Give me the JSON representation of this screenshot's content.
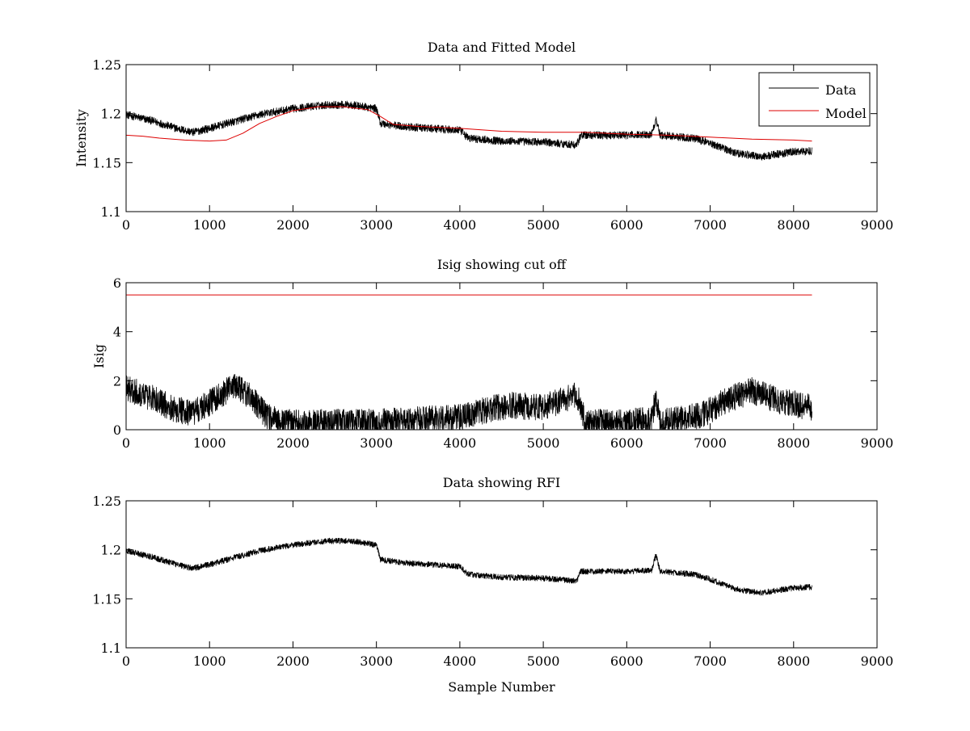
{
  "chart_data": [
    {
      "type": "line",
      "title": "Data and Fitted Model",
      "xlabel": "",
      "ylabel": "Intensity",
      "xlim": [
        0,
        9000
      ],
      "ylim": [
        1.1,
        1.25
      ],
      "xticks": [
        "0",
        "1000",
        "2000",
        "3000",
        "4000",
        "5000",
        "6000",
        "7000",
        "8000",
        "9000"
      ],
      "yticks": [
        "1.1",
        "1.15",
        "1.2",
        "1.25"
      ],
      "grid": false,
      "legend": "top-right",
      "series": [
        {
          "name": "Data",
          "color": "#000000",
          "noise": 0.004,
          "x": [
            0,
            300,
            600,
            800,
            1000,
            1300,
            1600,
            2000,
            2400,
            2700,
            3000,
            3050,
            3300,
            3600,
            4000,
            4100,
            4500,
            5000,
            5400,
            5450,
            6000,
            6300,
            6350,
            6400,
            6800,
            7000,
            7300,
            7600,
            8000,
            8220
          ],
          "values": [
            1.199,
            1.193,
            1.185,
            1.181,
            1.185,
            1.192,
            1.199,
            1.205,
            1.209,
            1.209,
            1.205,
            1.19,
            1.187,
            1.185,
            1.183,
            1.175,
            1.172,
            1.171,
            1.168,
            1.178,
            1.178,
            1.179,
            1.195,
            1.178,
            1.175,
            1.17,
            1.16,
            1.156,
            1.161,
            1.162
          ]
        },
        {
          "name": "Model",
          "color": "#dd0000",
          "noise": 0,
          "x": [
            0,
            200,
            400,
            700,
            1000,
            1200,
            1400,
            1600,
            1800,
            2000,
            2300,
            2600,
            2900,
            3050,
            3200,
            3500,
            4000,
            4500,
            5000,
            5500,
            6000,
            6500,
            7000,
            7500,
            8000,
            8220
          ],
          "values": [
            1.178,
            1.177,
            1.175,
            1.173,
            1.172,
            1.173,
            1.18,
            1.19,
            1.197,
            1.203,
            1.207,
            1.207,
            1.204,
            1.197,
            1.189,
            1.187,
            1.185,
            1.182,
            1.181,
            1.181,
            1.179,
            1.178,
            1.176,
            1.174,
            1.173,
            1.172
          ]
        }
      ]
    },
    {
      "type": "line",
      "title": "Isig showing cut off",
      "xlabel": "",
      "ylabel": "Isig",
      "xlim": [
        0,
        9000
      ],
      "ylim": [
        0,
        6
      ],
      "xticks": [
        "0",
        "1000",
        "2000",
        "3000",
        "4000",
        "5000",
        "6000",
        "7000",
        "8000",
        "9000"
      ],
      "yticks": [
        "0",
        "2",
        "4",
        "6"
      ],
      "grid": false,
      "series": [
        {
          "color": "#000000",
          "noise": 0.55,
          "x": [
            0,
            300,
            600,
            800,
            1000,
            1300,
            1500,
            1700,
            1900,
            2500,
            3000,
            3500,
            4000,
            4300,
            4600,
            5000,
            5300,
            5400,
            5500,
            6000,
            6300,
            6350,
            6400,
            6900,
            7200,
            7500,
            7800,
            8220
          ],
          "values": [
            1.7,
            1.3,
            0.8,
            0.7,
            1.1,
            1.8,
            1.3,
            0.5,
            0.3,
            0.3,
            0.3,
            0.4,
            0.5,
            0.8,
            1.0,
            0.9,
            1.3,
            1.5,
            0.3,
            0.3,
            0.4,
            1.4,
            0.3,
            0.6,
            1.2,
            1.6,
            1.2,
            0.9
          ]
        },
        {
          "color": "#dd0000",
          "noise": 0,
          "x": [
            0,
            8220
          ],
          "values": [
            5.5,
            5.5
          ]
        }
      ]
    },
    {
      "type": "line",
      "title": "Data showing RFI",
      "xlabel": "Sample Number",
      "ylabel": "",
      "xlim": [
        0,
        9000
      ],
      "ylim": [
        1.1,
        1.25
      ],
      "xticks": [
        "0",
        "1000",
        "2000",
        "3000",
        "4000",
        "5000",
        "6000",
        "7000",
        "8000",
        "9000"
      ],
      "yticks": [
        "1.1",
        "1.15",
        "1.2",
        "1.25"
      ],
      "grid": false,
      "series": [
        {
          "color": "#000000",
          "noise": 0.003,
          "x": [
            0,
            300,
            600,
            800,
            1000,
            1300,
            1600,
            2000,
            2400,
            2700,
            3000,
            3050,
            3300,
            3600,
            4000,
            4100,
            4500,
            5000,
            5400,
            5450,
            6000,
            6300,
            6350,
            6400,
            6800,
            7000,
            7300,
            7600,
            8000,
            8220
          ],
          "values": [
            1.199,
            1.193,
            1.185,
            1.181,
            1.185,
            1.192,
            1.199,
            1.205,
            1.209,
            1.209,
            1.205,
            1.19,
            1.187,
            1.185,
            1.183,
            1.175,
            1.172,
            1.171,
            1.168,
            1.178,
            1.178,
            1.179,
            1.195,
            1.178,
            1.175,
            1.17,
            1.16,
            1.156,
            1.161,
            1.162
          ]
        }
      ]
    }
  ]
}
